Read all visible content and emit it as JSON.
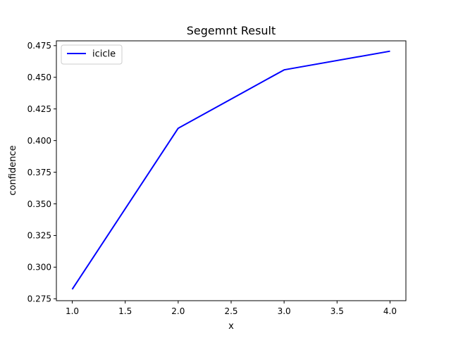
{
  "chart_data": {
    "type": "line",
    "title": "Segemnt Result",
    "xlabel": "x",
    "ylabel": "confidence",
    "xlim": [
      0.85,
      4.15
    ],
    "ylim": [
      0.2735,
      0.4788
    ],
    "xticks": [
      1.0,
      1.5,
      2.0,
      2.5,
      3.0,
      3.5,
      4.0
    ],
    "xtick_labels": [
      "1.0",
      "1.5",
      "2.0",
      "2.5",
      "3.0",
      "3.5",
      "4.0"
    ],
    "yticks": [
      0.275,
      0.3,
      0.325,
      0.35,
      0.375,
      0.4,
      0.425,
      0.45,
      0.475
    ],
    "ytick_labels": [
      "0.275",
      "0.300",
      "0.325",
      "0.350",
      "0.375",
      "0.400",
      "0.425",
      "0.450",
      "0.475"
    ],
    "grid": false,
    "legend": {
      "position": "top-left"
    },
    "series": [
      {
        "name": "icicle",
        "color": "#0000ff",
        "x": [
          1.0,
          2.0,
          3.0,
          4.0
        ],
        "y": [
          0.2825,
          0.4097,
          0.4559,
          0.4706
        ]
      }
    ]
  }
}
